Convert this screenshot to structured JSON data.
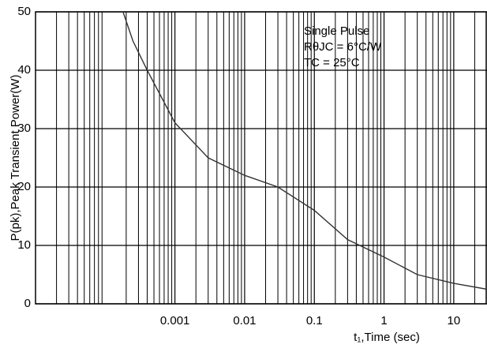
{
  "chart_data": {
    "type": "line",
    "y_label": "P(pk),Peak Transient Power(W)",
    "x_label": "t₁,Time (sec)",
    "annotations": [
      "Single Pulse",
      "RθJC = 6°C/W",
      "TC = 25°C"
    ],
    "x": [
      0.00018,
      0.00025,
      0.0004,
      0.001,
      0.003,
      0.01,
      0.03,
      0.1,
      0.3,
      1,
      3,
      10,
      30
    ],
    "series": [
      {
        "name": "P(pk)",
        "color": "#333333",
        "values": [
          50,
          45,
          40,
          31,
          25,
          22,
          20,
          16,
          11,
          8,
          5,
          3.5,
          2.5
        ]
      }
    ],
    "xlim": [
      1e-05,
      30
    ],
    "ylim": [
      0,
      50
    ],
    "xticks": [
      0.001,
      0.01,
      0.1,
      1,
      10
    ],
    "yticks": [
      0,
      10,
      20,
      30,
      40,
      50
    ],
    "xscale": "log",
    "grid": true
  }
}
